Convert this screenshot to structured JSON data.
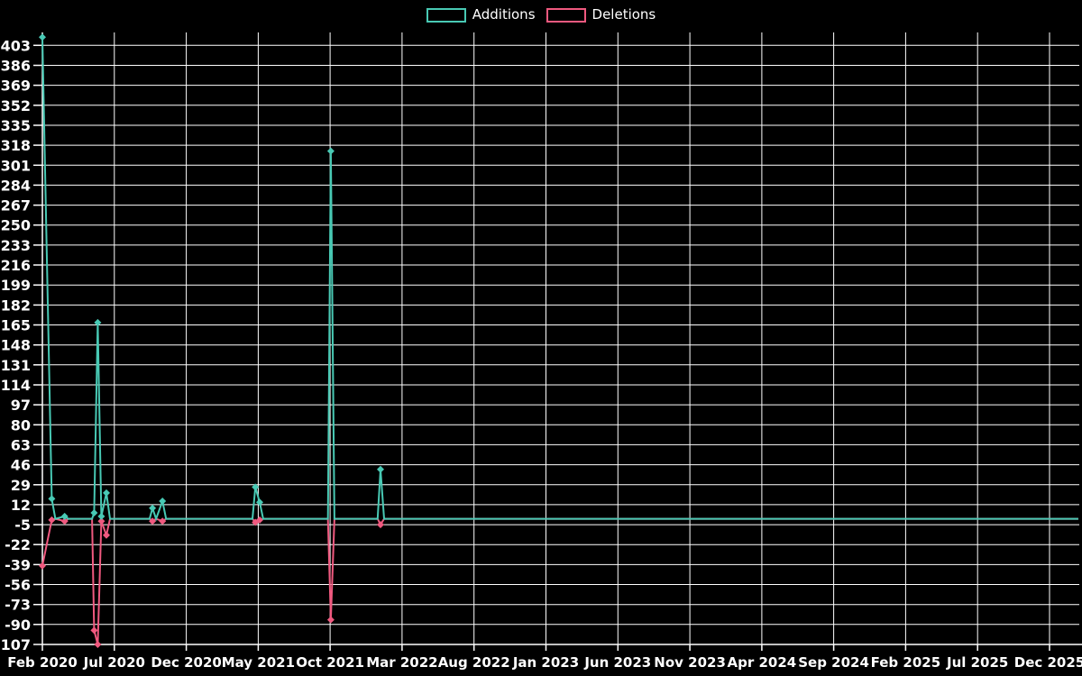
{
  "chart_data": {
    "type": "line",
    "title": "",
    "xlabel": "",
    "ylabel": "",
    "background_color": "#000000",
    "grid": true,
    "grid_color": "#ffffff",
    "text_color": "#ffffff",
    "legend_position": "top-center",
    "x_unit": "months since Feb 2020",
    "x_ticks": [
      "Feb 2020",
      "Jul 2020",
      "Dec 2020",
      "May 2021",
      "Oct 2021",
      "Mar 2022",
      "Aug 2022",
      "Jan 2023",
      "Jun 2023",
      "Nov 2023",
      "Apr 2024",
      "Sep 2024",
      "Feb 2025",
      "Jul 2025",
      "Dec 2025"
    ],
    "x_tick_months": [
      0,
      5,
      10,
      15,
      20,
      25,
      30,
      35,
      40,
      45,
      50,
      55,
      60,
      65,
      70
    ],
    "y_ticks": [
      403,
      386,
      369,
      352,
      335,
      318,
      301,
      284,
      267,
      250,
      233,
      216,
      199,
      182,
      165,
      148,
      131,
      114,
      97,
      80,
      63,
      46,
      29,
      12,
      -5,
      -22,
      -39,
      -56,
      -73,
      -90,
      -107
    ],
    "ylim": [
      -107,
      414
    ],
    "xlim_months": [
      0,
      72
    ],
    "x": [
      0,
      0.65,
      0.9,
      1.55,
      1.8,
      3.45,
      3.6,
      3.85,
      4.1,
      4.45,
      4.7,
      7.45,
      7.65,
      7.9,
      8.35,
      8.6,
      14.6,
      14.8,
      15.1,
      15.35,
      19.85,
      20.05,
      20.3,
      23.3,
      23.5,
      23.75,
      72
    ],
    "series": [
      {
        "name": "Additions",
        "color": "#48c9b4",
        "values": [
          410,
          17,
          0,
          2,
          0,
          0,
          5,
          167,
          2,
          22,
          0,
          0,
          9,
          0,
          15,
          0,
          0,
          27,
          14,
          0,
          0,
          313,
          0,
          0,
          42,
          0,
          0
        ]
      },
      {
        "name": "Deletions",
        "color": "#f0597f",
        "values": [
          -40,
          -1,
          0,
          -2,
          0,
          0,
          -95,
          -107,
          -2,
          -14,
          0,
          0,
          -2,
          0,
          -2,
          0,
          0,
          -3,
          -1,
          0,
          0,
          -86,
          0,
          0,
          -5,
          0,
          0
        ]
      }
    ]
  }
}
